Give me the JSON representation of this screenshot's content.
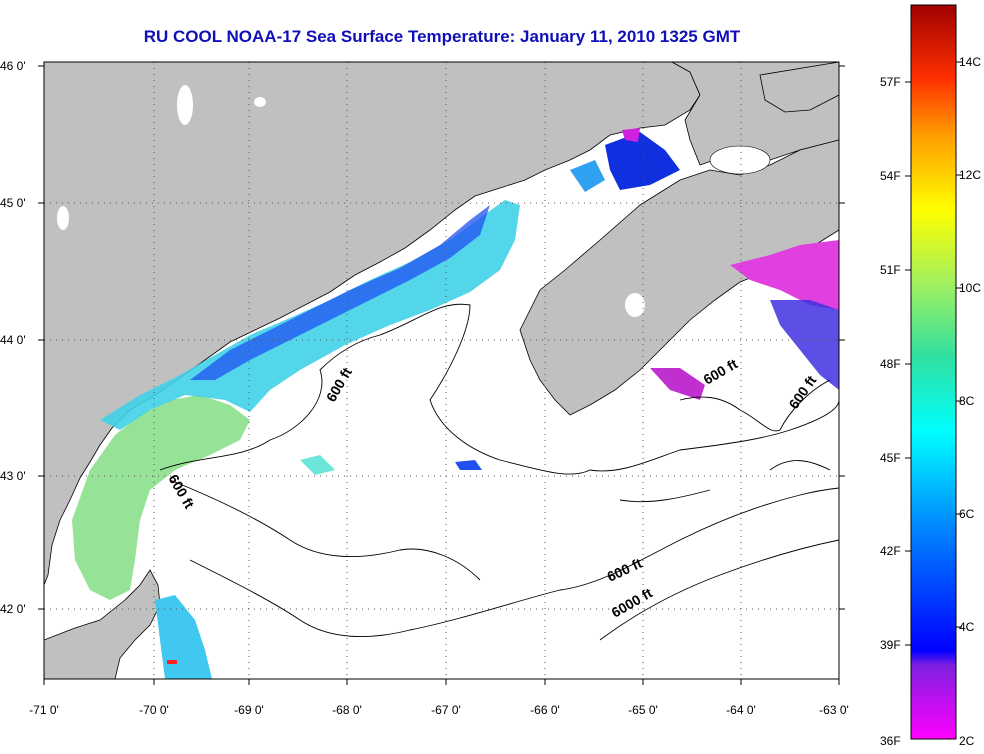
{
  "title": "RU COOL  NOAA-17  Sea Surface Temperature:  January 11, 2010 1325 GMT",
  "map": {
    "lat_ticks": [
      "46 0'",
      "45 0'",
      "44 0'",
      "43 0'",
      "42 0'"
    ],
    "lon_ticks": [
      "-71 0'",
      "-70 0'",
      "-69 0'",
      "-68 0'",
      "-67 0'",
      "-66 0'",
      "-65 0'",
      "-64 0'",
      "-63 0'"
    ],
    "lon_range": [
      -71,
      -63
    ],
    "lat_range": [
      41.5,
      46
    ],
    "land_color": "#c0c0c0",
    "grid": "dotted",
    "contour_labels": [
      "600 ft",
      "600 ft",
      "600 ft",
      "600 ft",
      "6000 ft"
    ]
  },
  "colorbar": {
    "fahrenheit_labels": [
      "57F",
      "54F",
      "51F",
      "48F",
      "45F",
      "42F",
      "39F",
      "36F"
    ],
    "celsius_labels": [
      "14C",
      "12C",
      "10C",
      "8C",
      "6C",
      "4C",
      "2C"
    ],
    "range_c": [
      2,
      15
    ]
  }
}
